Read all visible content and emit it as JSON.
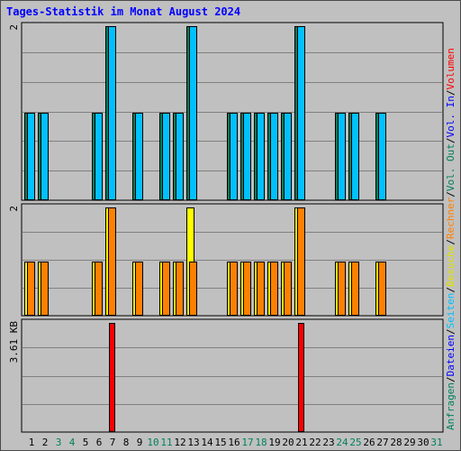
{
  "title": "Tages-Statistik im Monat August 2024",
  "chart_data": {
    "type": "bar",
    "categories": [
      "1",
      "2",
      "3",
      "4",
      "5",
      "6",
      "7",
      "8",
      "9",
      "10",
      "11",
      "12",
      "13",
      "14",
      "15",
      "16",
      "17",
      "18",
      "19",
      "20",
      "21",
      "22",
      "23",
      "24",
      "25",
      "26",
      "27",
      "28",
      "29",
      "30",
      "31"
    ],
    "weekend_days": [
      "3",
      "4",
      "10",
      "11",
      "17",
      "18",
      "24",
      "25",
      "31"
    ],
    "panels": [
      {
        "id": "requests",
        "max_label": "2",
        "ymax": 2,
        "series": [
          {
            "name": "Anfragen",
            "color": "#00805c",
            "values": [
              1,
              1,
              0,
              0,
              0,
              1,
              2,
              0,
              1,
              0,
              1,
              1,
              2,
              0,
              0,
              1,
              1,
              1,
              1,
              1,
              2,
              0,
              0,
              1,
              1,
              0,
              1,
              0,
              0,
              0,
              0
            ]
          },
          {
            "name": "Dateien",
            "color": "#00c0ff",
            "values": [
              1,
              1,
              0,
              0,
              0,
              1,
              2,
              0,
              1,
              0,
              1,
              1,
              2,
              0,
              0,
              1,
              1,
              1,
              1,
              1,
              2,
              0,
              0,
              1,
              1,
              0,
              1,
              0,
              0,
              0,
              0
            ]
          }
        ]
      },
      {
        "id": "visits",
        "max_label": "2",
        "ymax": 2,
        "series": [
          {
            "name": "Seiten",
            "color": "#ffff00",
            "values": [
              1,
              1,
              0,
              0,
              0,
              1,
              2,
              0,
              1,
              0,
              1,
              1,
              2,
              0,
              0,
              1,
              1,
              1,
              1,
              1,
              2,
              0,
              0,
              1,
              1,
              0,
              1,
              0,
              0,
              0,
              0
            ]
          },
          {
            "name": "Rechner",
            "color": "#ff8000",
            "values": [
              1,
              1,
              0,
              0,
              0,
              1,
              2,
              0,
              1,
              0,
              1,
              1,
              1,
              0,
              0,
              1,
              1,
              1,
              1,
              1,
              2,
              0,
              0,
              1,
              1,
              0,
              1,
              0,
              0,
              0,
              0
            ]
          }
        ]
      },
      {
        "id": "volume",
        "max_label": "3.61 KB",
        "ymax": 3.61,
        "series": [
          {
            "name": "Volumen",
            "color": "#ff0000",
            "values": [
              0,
              0,
              0,
              0,
              0,
              0,
              3.61,
              0,
              0,
              0,
              0,
              0,
              0,
              0,
              0,
              0,
              0,
              0,
              0,
              0,
              3.61,
              0,
              0,
              0,
              0,
              0,
              0,
              0,
              0,
              0,
              0
            ]
          }
        ]
      }
    ],
    "legend": [
      {
        "text": "Anfragen",
        "color": "#00805c"
      },
      {
        "text": "/",
        "color": "#000000"
      },
      {
        "text": "Dateien",
        "color": "#0000ff"
      },
      {
        "text": "/",
        "color": "#000000"
      },
      {
        "text": "Seiten",
        "color": "#00c0ff"
      },
      {
        "text": "/",
        "color": "#000000"
      },
      {
        "text": "Besuche",
        "color": "#e0e000"
      },
      {
        "text": "/",
        "color": "#000000"
      },
      {
        "text": "Rechner",
        "color": "#ff8000"
      },
      {
        "text": "/",
        "color": "#000000"
      },
      {
        "text": "Vol. Out",
        "color": "#00805c"
      },
      {
        "text": "/",
        "color": "#000000"
      },
      {
        "text": "Vol. In",
        "color": "#0000ff"
      },
      {
        "text": "/",
        "color": "#000000"
      },
      {
        "text": "Volumen",
        "color": "#ff0000"
      }
    ],
    "colors": {
      "weekday_label": "#000000",
      "weekend_label": "#00805c",
      "grid": "#808080",
      "panel_bg": "#c0c0c0"
    }
  }
}
